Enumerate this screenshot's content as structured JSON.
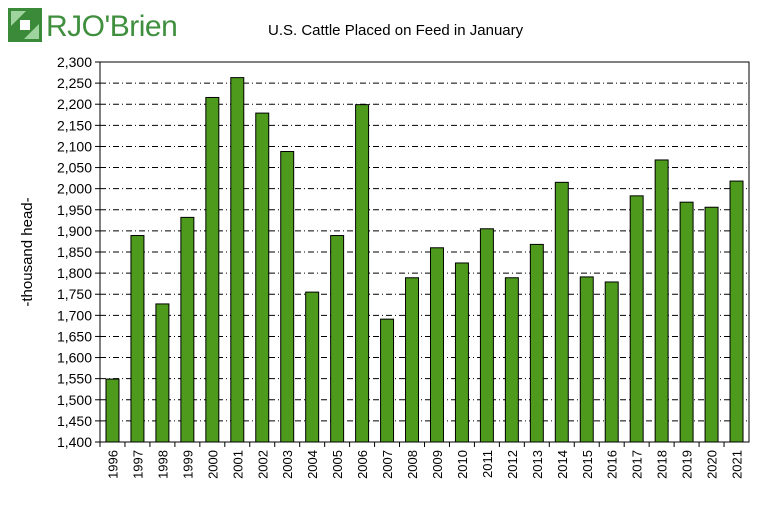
{
  "logo": {
    "text": "RJO'Brien"
  },
  "chart_data": {
    "type": "bar",
    "title": "U.S. Cattle Placed on Feed in January",
    "ylabel": "-thousand head-",
    "xlabel": "",
    "ylim": [
      1400,
      2300
    ],
    "ytick_step": 50,
    "grid": true,
    "bar_color": "#4e9a1c",
    "categories": [
      "1996",
      "1997",
      "1998",
      "1999",
      "2000",
      "2001",
      "2002",
      "2003",
      "2004",
      "2005",
      "2006",
      "2007",
      "2008",
      "2009",
      "2010",
      "2011",
      "2012",
      "2013",
      "2014",
      "2015",
      "2016",
      "2017",
      "2018",
      "2019",
      "2020",
      "2021"
    ],
    "values": [
      1549,
      1889,
      1727,
      1932,
      2216,
      2263,
      2179,
      2088,
      1755,
      1889,
      2199,
      1691,
      1789,
      1860,
      1824,
      1905,
      1789,
      1868,
      2015,
      1791,
      1779,
      1983,
      2068,
      1968,
      1956,
      2018
    ]
  }
}
